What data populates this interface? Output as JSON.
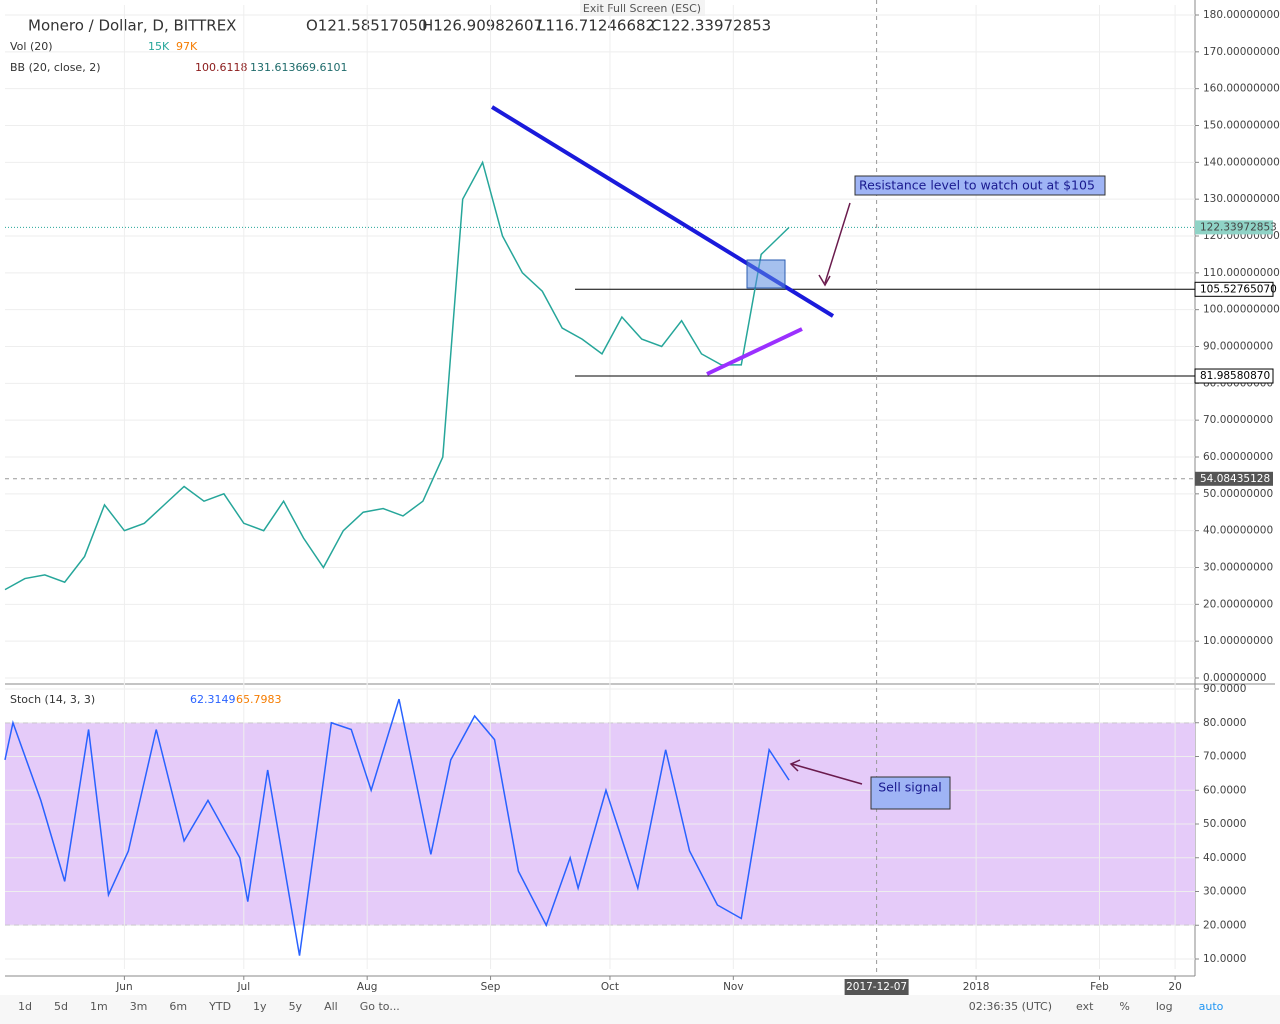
{
  "header": {
    "symbol": "Monero / Dollar, D, BITTREX",
    "ohlc": [
      "O121.58517050",
      "H126.90982607",
      "L116.71246682",
      "C122.33972853"
    ]
  },
  "exit_fullscreen": "Exit Full Screen (ESC)",
  "indicators": {
    "vol": {
      "label": "Vol (20)",
      "values": [
        "15K",
        "97K"
      ]
    },
    "bb": {
      "label": "BB (20, close, 2)",
      "values": [
        "100.6118",
        "131.6136",
        "69.6101"
      ]
    },
    "stoch": {
      "label": "Stoch (14, 3, 3)",
      "values": [
        "62.3149",
        "65.7983"
      ]
    }
  },
  "annotations": [
    "Resistance level to watch out at $105",
    "Sell signal"
  ],
  "toolbar": {
    "ranges": [
      "1d",
      "5d",
      "1m",
      "3m",
      "6m",
      "YTD",
      "1y",
      "5y",
      "All",
      "Go to..."
    ],
    "time": "02:36:35 (UTC)",
    "options": [
      "ext",
      "%",
      "log",
      "auto"
    ]
  },
  "chart_data": [
    {
      "type": "line",
      "color": "#26a69a",
      "x": [
        -30,
        -25,
        -20,
        -15,
        -10,
        -5,
        0,
        5,
        10,
        15,
        20,
        25,
        30,
        35,
        40,
        45,
        50,
        55,
        60,
        65,
        70,
        75,
        80,
        85,
        90,
        95,
        100,
        105,
        110,
        115,
        120,
        125,
        130,
        135,
        140,
        145,
        150,
        155,
        160,
        167
      ],
      "values": [
        24,
        27,
        28,
        26,
        33,
        47,
        40,
        42,
        47,
        52,
        48,
        50,
        42,
        40,
        48,
        38,
        30,
        40,
        45,
        46,
        44,
        48,
        60,
        130,
        140,
        120,
        110,
        105,
        95,
        92,
        88,
        98,
        92,
        90,
        97,
        88,
        85,
        85,
        115,
        122.33972853
      ],
      "xlim": [
        -30,
        269
      ],
      "ylim": [
        0,
        180
      ],
      "yticks": [
        {
          "value": 0,
          "label": "0.00000000"
        },
        {
          "value": 10,
          "label": "10.00000000"
        },
        {
          "value": 20,
          "label": "20.00000000"
        },
        {
          "value": 30,
          "label": "30.00000000"
        },
        {
          "value": 40,
          "label": "40.00000000"
        },
        {
          "value": 50,
          "label": "50.00000000"
        },
        {
          "value": 60,
          "label": "60.00000000"
        },
        {
          "value": 70,
          "label": "70.00000000"
        },
        {
          "value": 80,
          "label": "80.00000000"
        },
        {
          "value": 90,
          "label": "90.00000000"
        },
        {
          "value": 100,
          "label": "100.00000000"
        },
        {
          "value": 110,
          "label": "110.00000000"
        },
        {
          "value": 120,
          "label": "120.00000000"
        },
        {
          "value": 130,
          "label": "130.00000000"
        },
        {
          "value": 140,
          "label": "140.00000000"
        },
        {
          "value": 150,
          "label": "150.00000000"
        },
        {
          "value": 160,
          "label": "160.00000000"
        },
        {
          "value": 170,
          "label": "170.00000000"
        },
        {
          "value": 180,
          "label": "180.00000000"
        }
      ],
      "price_lines": [
        {
          "value": 105.5276507,
          "label": "105.52765070"
        },
        {
          "value": 81.9858087,
          "label": "81.98580870"
        }
      ],
      "last_price": {
        "value": 122.33972853,
        "label": "122.33972853"
      },
      "crosshair": {
        "value": 54.08435128,
        "label": "54.08435128"
      },
      "grid": true
    },
    {
      "type": "line",
      "color": "#2962ff",
      "x": [
        -30,
        -28,
        -21,
        -15,
        -9,
        -4,
        1,
        8,
        15,
        21,
        29,
        31,
        36,
        44,
        52,
        57,
        62,
        69,
        77,
        82,
        88,
        93,
        99,
        106,
        112,
        114,
        121,
        129,
        136,
        142,
        149,
        155,
        162,
        167
      ],
      "values": [
        69,
        80,
        57,
        33,
        78,
        29,
        42,
        78,
        45,
        57,
        40,
        27,
        66,
        11,
        80,
        78,
        60,
        87,
        41,
        69,
        82,
        75,
        36,
        20,
        40,
        31,
        60,
        31,
        72,
        42,
        26,
        22,
        72,
        63
      ],
      "xlim": [
        -30,
        269
      ],
      "ylim": [
        10,
        90
      ],
      "bands": [
        20,
        80
      ],
      "yticks": [
        {
          "value": 10,
          "label": "10.0000"
        },
        {
          "value": 20,
          "label": "20.0000"
        },
        {
          "value": 30,
          "label": "30.0000"
        },
        {
          "value": 40,
          "label": "40.0000"
        },
        {
          "value": 50,
          "label": "50.0000"
        },
        {
          "value": 60,
          "label": "60.0000"
        },
        {
          "value": 70,
          "label": "70.0000"
        },
        {
          "value": 80,
          "label": "80.0000"
        },
        {
          "value": 90,
          "label": "90.0000"
        }
      ],
      "xticks": [
        {
          "value": 0,
          "label": "Jun"
        },
        {
          "value": 30,
          "label": "Jul"
        },
        {
          "value": 61,
          "label": "Aug"
        },
        {
          "value": 92,
          "label": "Sep"
        },
        {
          "value": 122,
          "label": "Oct"
        },
        {
          "value": 153,
          "label": "Nov"
        },
        {
          "value": 214,
          "label": "2018"
        },
        {
          "value": 245,
          "label": "Feb"
        },
        {
          "value": 264,
          "label": "20"
        }
      ],
      "crosshair": {
        "value": 189,
        "label": "2017-12-07"
      },
      "grid": true
    }
  ]
}
